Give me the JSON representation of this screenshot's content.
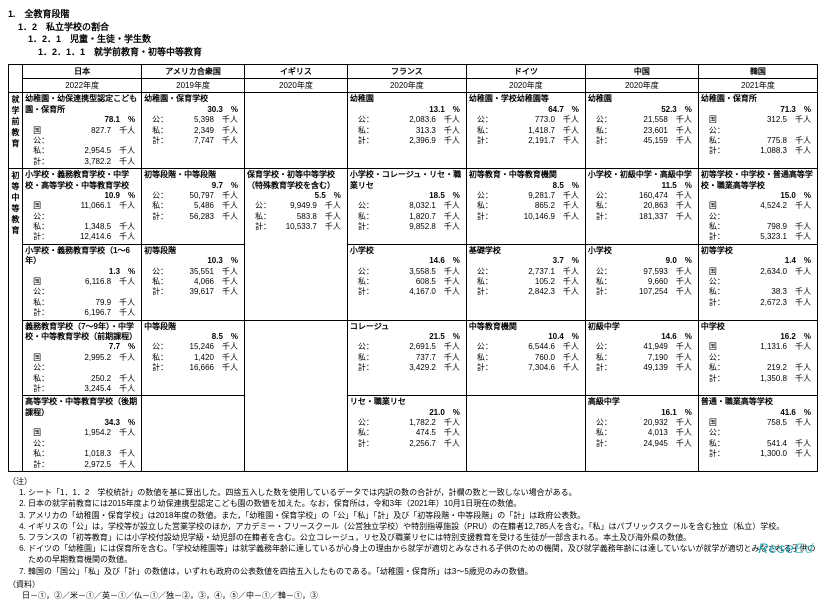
{
  "headings": {
    "h1": "1.　全教育段階",
    "h2": "1．2　私立学校の割合",
    "h3": "1．2．1　児童・生徒・学生数",
    "h4": "1．2．1．1　就学前教育・初等中等教育"
  },
  "countries": [
    "日本",
    "アメリカ合衆国",
    "イギリス",
    "フランス",
    "ドイツ",
    "中国",
    "韓国"
  ],
  "years": [
    "2022年度",
    "2019年度",
    "2020年度",
    "2020年度",
    "2020年度",
    "2020年度",
    "2021年度"
  ],
  "side": {
    "pre": "就学前教育",
    "elem": "初　等　中　等　教　育"
  },
  "unit_thousand": "千人",
  "row_labels": {
    "pub": "国公：",
    "pub2": "公：",
    "priv": "私：",
    "total": "計："
  },
  "cells": {
    "pre": {
      "jp": {
        "title": "幼稚園・幼保連携型認定こども園・保育所",
        "pct": "78.1",
        "pub": "827.7",
        "priv": "2,954.5",
        "tot": "3,782.2",
        "pub_lbl": "国公："
      },
      "us": {
        "title": "幼稚園・保育学校",
        "pct": "30.3",
        "pub": "5,398",
        "priv": "2,349",
        "tot": "7,747",
        "pub_lbl": "公："
      },
      "uk": {
        "title": "",
        "pct": "",
        "pub": "",
        "priv": "",
        "tot": ""
      },
      "fr": {
        "title": "幼稚園",
        "pct": "13.1",
        "pub": "2,083.6",
        "priv": "313.3",
        "tot": "2,396.9",
        "pub_lbl": "公："
      },
      "de": {
        "title": "幼稚園・学校幼稚園等",
        "pct": "64.7",
        "pub": "773.0",
        "priv": "1,418.7",
        "tot": "2,191.7",
        "pub_lbl": "公："
      },
      "cn": {
        "title": "幼稚園",
        "pct": "52.3",
        "pub": "21,558",
        "priv": "23,601",
        "tot": "45,159",
        "pub_lbl": "公："
      },
      "kr": {
        "title": "幼稚園・保育所",
        "pct": "71.3",
        "pub": "312.5",
        "priv": "775.8",
        "tot": "1,088.3",
        "pub_lbl": "国公："
      }
    },
    "elem1": {
      "jp": {
        "title": "小学校・義務教育学校・中学校・高等学校・中等教育学校",
        "pct": "10.9",
        "pub": "11,066.1",
        "priv": "1,348.5",
        "tot": "12,414.6",
        "pub_lbl": "国公："
      },
      "us": {
        "title": "初等段階・中等段階",
        "pct": "9.7",
        "pub": "50,797",
        "priv": "5,486",
        "tot": "56,283",
        "pub_lbl": "公："
      },
      "uk": {
        "title": "",
        "pct": "",
        "pub": "",
        "priv": "",
        "tot": ""
      },
      "fr": {
        "title": "小学校・コレージュ・リセ・職業リセ",
        "pct": "18.5",
        "pub": "8,032.1",
        "priv": "1,820.7",
        "tot": "9,852.8",
        "pub_lbl": "公："
      },
      "de": {
        "title": "初等教育・中等教育機関",
        "pct": "8.5",
        "pub": "9,281.7",
        "priv": "865.2",
        "tot": "10,146.9",
        "pub_lbl": "公："
      },
      "cn": {
        "title": "小学校・初級中学・高級中学",
        "pct": "11.5",
        "pub": "160,474",
        "priv": "20,863",
        "tot": "181,337",
        "pub_lbl": "公："
      },
      "kr": {
        "title": "初等学校・中学校・普通高等学校・職業高等学校",
        "pct": "15.0",
        "pub": "4,524.2",
        "priv": "798.9",
        "tot": "5,323.1",
        "pub_lbl": "国公："
      }
    },
    "elem2": {
      "jp": {
        "title": "小学校・義務教育学校（1～6年）",
        "pct": "1.3",
        "pub": "6,116.8",
        "priv": "79.9",
        "tot": "6,196.7",
        "pub_lbl": "国公："
      },
      "us": {
        "title": "初等段階",
        "pct": "10.3",
        "pub": "35,551",
        "priv": "4,066",
        "tot": "39,617",
        "pub_lbl": "公："
      },
      "uk": {
        "title": "保育学校・初等中等学校（特殊教育学校を含む）",
        "pct": "5.5",
        "pub": "9,949.9",
        "priv": "583.8",
        "tot": "10,533.7",
        "pub_lbl": "公："
      },
      "fr": {
        "title": "小学校",
        "pct": "14.6",
        "pub": "3,558.5",
        "priv": "608.5",
        "tot": "4,167.0",
        "pub_lbl": "公："
      },
      "de": {
        "title": "基礎学校",
        "pct": "3.7",
        "pub": "2,737.1",
        "priv": "105.2",
        "tot": "2,842.3",
        "pub_lbl": "公："
      },
      "cn": {
        "title": "小学校",
        "pct": "9.0",
        "pub": "97,593",
        "priv": "9,660",
        "tot": "107,254",
        "pub_lbl": "公："
      },
      "kr": {
        "title": "初等学校",
        "pct": "1.4",
        "pub": "2,634.0",
        "priv": "38.3",
        "tot": "2,672.3",
        "pub_lbl": "国公："
      }
    },
    "elem3": {
      "jp": {
        "title": "義務教育学校（7～9年）・中学校・中等教育学校（前期課程）",
        "pct": "7.7",
        "pub": "2,995.2",
        "priv": "250.2",
        "tot": "3,245.4",
        "pub_lbl": "国公："
      },
      "us": {
        "title": "中等段階",
        "pct": "8.5",
        "pub": "15,246",
        "priv": "1,420",
        "tot": "16,666",
        "pub_lbl": "公："
      },
      "uk": {
        "title": "",
        "pct": "",
        "pub": "",
        "priv": "",
        "tot": ""
      },
      "fr": {
        "title": "コレージュ",
        "pct": "21.5",
        "pub": "2,691.5",
        "priv": "737.7",
        "tot": "3,429.2",
        "pub_lbl": "公："
      },
      "de": {
        "title": "中等教育機関",
        "pct": "10.4",
        "pub": "6,544.6",
        "priv": "760.0",
        "tot": "7,304.6",
        "pub_lbl": "公："
      },
      "cn": {
        "title": "初級中学",
        "pct": "14.6",
        "pub": "41,949",
        "priv": "7,190",
        "tot": "49,139",
        "pub_lbl": "公："
      },
      "kr": {
        "title": "中学校",
        "pct": "16.2",
        "pub": "1,131.6",
        "priv": "219.2",
        "tot": "1,350.8",
        "pub_lbl": "国公："
      }
    },
    "elem4": {
      "jp": {
        "title": "高等学校・中等教育学校（後期課程）",
        "pct": "34.3",
        "pub": "1,954.2",
        "priv": "1,018.3",
        "tot": "2,972.5",
        "pub_lbl": "国公："
      },
      "us": {
        "title": "",
        "pct": "",
        "pub": "",
        "priv": "",
        "tot": ""
      },
      "uk": {
        "title": "",
        "pct": "",
        "pub": "",
        "priv": "",
        "tot": ""
      },
      "fr": {
        "title": "リセ・職業リセ",
        "pct": "21.0",
        "pub": "1,782.2",
        "priv": "474.5",
        "tot": "2,256.7",
        "pub_lbl": "公："
      },
      "de": {
        "title": "",
        "pct": "",
        "pub": "",
        "priv": "",
        "tot": ""
      },
      "cn": {
        "title": "高級中学",
        "pct": "16.1",
        "pub": "20,932",
        "priv": "4,013",
        "tot": "24,945",
        "pub_lbl": "公："
      },
      "kr": {
        "title": "普通・職業高等学校",
        "pct": "41.6",
        "pub": "758.5",
        "priv": "541.4",
        "tot": "1,300.0",
        "pub_lbl": "国公："
      }
    }
  },
  "notes": {
    "head": "（注）",
    "items": [
      "シート「1．1．2　学校統計」の数値を基に算出した。四捨五入した数を使用しているデータでは内訳の数の合計が，計欄の数と一致しない場合がある。",
      "日本の就学前教育には2015年度より幼保連携型認定こども園の数値を加えた。なお，保育所は，令和3年（2021年）10月1日現在の数値。",
      "アメリカの「幼稚園・保育学校」は2018年度の数値。また，「幼稚園・保育学校」の「公」「私」「計」及び「初等段階・中等段階」の「計」は政府公表数。",
      "イギリスの「公」は，学校等が設立した営業学校のほか，アカデミー・フリースクール（公営独立学校）や特別指導施設（PRU）の在籍者12,785人を含む。「私」はパブリックスクールを含む独立（私立）学校。",
      "フランスの「初等教育」には小学校付設幼児学級・幼児部の在籍者を含む。公立コレージュ，リセ及び職業リセには特別支援教育を受ける生徒が一部含まれる。本土及び海外県の数値。",
      "ドイツの「幼稚園」には保育所を含む。「学校幼稚園等」は就学義務年齢に達しているが心身上の理由から就学が適切とみなされる子供のための機関，及び就学義務年齢には達していないが就学が適切とみなされる子供のための早期教育機関の数値。",
      "韓国の「国公」「私」及び「計」の数値は，いずれも政府の公表数値を四捨五入したものである。「幼稚園・保育所」は3～5歳児のみの数値。"
    ],
    "src_head": "（資料）",
    "src": "日－①，②／米－①／英－①／仏－①／独－②，③，④，⑤／中－①／韓－①，③"
  },
  "logo": "ReseEd"
}
